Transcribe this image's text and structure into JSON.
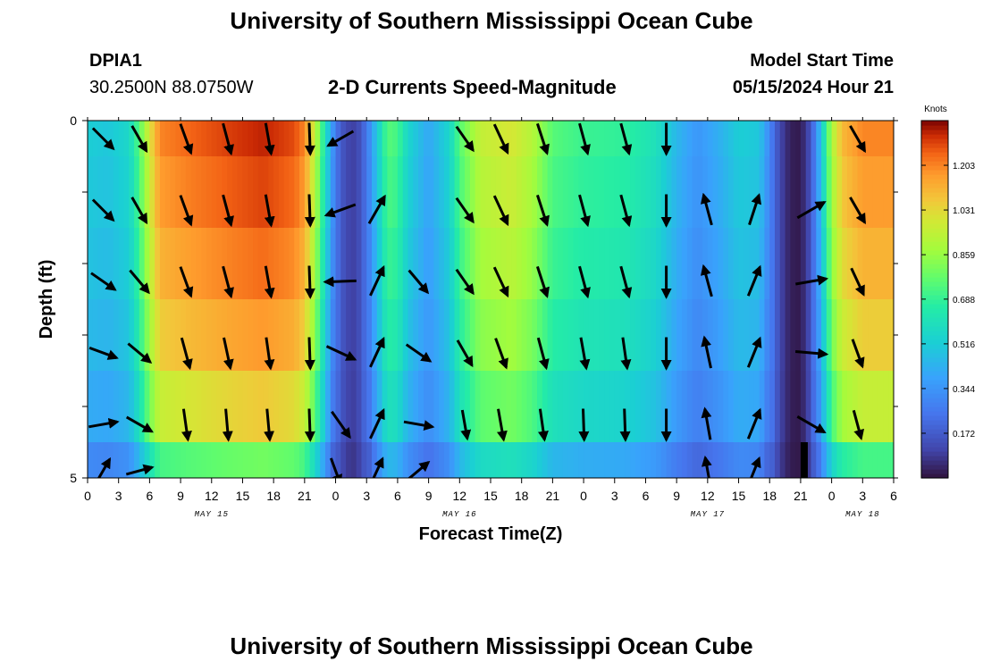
{
  "title": "University of Southern Mississippi Ocean Cube",
  "footer_title": "University of Southern Mississippi Ocean Cube",
  "station": {
    "id": "DPIA1",
    "location": "30.2500N  88.0750W"
  },
  "subtitle": "2-D Currents Speed-Magnitude",
  "model_start": {
    "label": "Model Start Time",
    "value": "05/15/2024 Hour 21"
  },
  "chart_data": {
    "type": "heatmap",
    "xlabel": "Forecast Time(Z)",
    "ylabel": "Depth (ft)",
    "x_tick_labels": [
      "0",
      "3",
      "6",
      "9",
      "12",
      "15",
      "18",
      "21",
      "0",
      "3",
      "6",
      "9",
      "12",
      "15",
      "18",
      "21",
      "0",
      "3",
      "6",
      "9",
      "12",
      "15",
      "18",
      "21",
      "0",
      "3",
      "6"
    ],
    "date_labels": [
      "MAY 15",
      "MAY 16",
      "MAY 17",
      "MAY 18"
    ],
    "y_tick_labels": [
      "0",
      "5"
    ],
    "ylim": [
      0,
      5
    ],
    "xlim_hours": [
      0,
      78
    ],
    "colorbar": {
      "unit": "Knots",
      "ticks": [
        "1.203",
        "1.031",
        "0.859",
        "0.688",
        "0.516",
        "0.344",
        "0.172"
      ],
      "range": [
        0,
        1.375
      ]
    },
    "depth_rows_ft": [
      0.25,
      1.25,
      2.25,
      3.25,
      4.25,
      4.75
    ],
    "speed_profile": [
      {
        "hour": 0,
        "speed": 0.52
      },
      {
        "hour": 2,
        "speed": 0.5
      },
      {
        "hour": 4,
        "speed": 0.56
      },
      {
        "hour": 5,
        "speed": 0.75
      },
      {
        "hour": 6,
        "speed": 1.0
      },
      {
        "hour": 7,
        "speed": 1.2
      },
      {
        "hour": 10,
        "speed": 1.25
      },
      {
        "hour": 14,
        "speed": 1.3
      },
      {
        "hour": 17,
        "speed": 1.33
      },
      {
        "hour": 20,
        "speed": 1.28
      },
      {
        "hour": 21,
        "speed": 1.2
      },
      {
        "hour": 22,
        "speed": 0.95
      },
      {
        "hour": 23,
        "speed": 0.6
      },
      {
        "hour": 24,
        "speed": 0.25
      },
      {
        "hour": 25,
        "speed": 0.12
      },
      {
        "hour": 26,
        "speed": 0.1
      },
      {
        "hour": 27,
        "speed": 0.25
      },
      {
        "hour": 28,
        "speed": 0.5
      },
      {
        "hour": 29,
        "speed": 0.75
      },
      {
        "hour": 30,
        "speed": 0.72
      },
      {
        "hour": 31,
        "speed": 0.55
      },
      {
        "hour": 33,
        "speed": 0.4
      },
      {
        "hour": 35,
        "speed": 0.55
      },
      {
        "hour": 36,
        "speed": 0.75
      },
      {
        "hour": 38,
        "speed": 0.95
      },
      {
        "hour": 41,
        "speed": 1.0
      },
      {
        "hour": 43,
        "speed": 0.92
      },
      {
        "hour": 45,
        "speed": 0.75
      },
      {
        "hour": 48,
        "speed": 0.7
      },
      {
        "hour": 52,
        "speed": 0.68
      },
      {
        "hour": 55,
        "speed": 0.6
      },
      {
        "hour": 57,
        "speed": 0.45
      },
      {
        "hour": 59,
        "speed": 0.35
      },
      {
        "hour": 61,
        "speed": 0.42
      },
      {
        "hour": 63,
        "speed": 0.52
      },
      {
        "hour": 65,
        "speed": 0.5
      },
      {
        "hour": 66,
        "speed": 0.3
      },
      {
        "hour": 67,
        "speed": 0.12
      },
      {
        "hour": 68,
        "speed": 0.03
      },
      {
        "hour": 69,
        "speed": 0.02
      },
      {
        "hour": 70,
        "speed": 0.15
      },
      {
        "hour": 71,
        "speed": 0.5
      },
      {
        "hour": 72,
        "speed": 0.9
      },
      {
        "hour": 73,
        "speed": 1.1
      },
      {
        "hour": 75,
        "speed": 1.2
      },
      {
        "hour": 78,
        "speed": 1.2
      }
    ],
    "depth_factor": [
      1.0,
      0.97,
      0.93,
      0.88,
      0.8,
      0.6
    ],
    "vectors": [
      {
        "hour": 1.5,
        "depth": 0.25,
        "angle": 135,
        "speed": 0.5
      },
      {
        "hour": 5,
        "depth": 0.25,
        "angle": 150,
        "speed": 0.5
      },
      {
        "hour": 9.5,
        "depth": 0.25,
        "angle": 160,
        "speed": 0.6
      },
      {
        "hour": 13.5,
        "depth": 0.25,
        "angle": 165,
        "speed": 0.6
      },
      {
        "hour": 17.5,
        "depth": 0.25,
        "angle": 170,
        "speed": 0.6
      },
      {
        "hour": 21.5,
        "depth": 0.25,
        "angle": 178,
        "speed": 0.6
      },
      {
        "hour": 24.5,
        "depth": 0.25,
        "angle": 240,
        "speed": 0.5
      },
      {
        "hour": 36.5,
        "depth": 0.25,
        "angle": 145,
        "speed": 0.5
      },
      {
        "hour": 40,
        "depth": 0.25,
        "angle": 155,
        "speed": 0.6
      },
      {
        "hour": 44,
        "depth": 0.25,
        "angle": 162,
        "speed": 0.6
      },
      {
        "hour": 48,
        "depth": 0.25,
        "angle": 165,
        "speed": 0.6
      },
      {
        "hour": 52,
        "depth": 0.25,
        "angle": 165,
        "speed": 0.6
      },
      {
        "hour": 56,
        "depth": 0.25,
        "angle": 180,
        "speed": 0.6
      },
      {
        "hour": 74.5,
        "depth": 0.25,
        "angle": 150,
        "speed": 0.5
      },
      {
        "hour": 1.5,
        "depth": 1.25,
        "angle": 135,
        "speed": 0.5
      },
      {
        "hour": 5,
        "depth": 1.25,
        "angle": 150,
        "speed": 0.5
      },
      {
        "hour": 9.5,
        "depth": 1.25,
        "angle": 160,
        "speed": 0.6
      },
      {
        "hour": 13.5,
        "depth": 1.25,
        "angle": 165,
        "speed": 0.6
      },
      {
        "hour": 17.5,
        "depth": 1.25,
        "angle": 170,
        "speed": 0.6
      },
      {
        "hour": 21.5,
        "depth": 1.25,
        "angle": 178,
        "speed": 0.6
      },
      {
        "hour": 24.5,
        "depth": 1.25,
        "angle": 250,
        "speed": 0.6
      },
      {
        "hour": 28,
        "depth": 1.25,
        "angle": 30,
        "speed": 0.6
      },
      {
        "hour": 36.5,
        "depth": 1.25,
        "angle": 145,
        "speed": 0.5
      },
      {
        "hour": 40,
        "depth": 1.25,
        "angle": 155,
        "speed": 0.6
      },
      {
        "hour": 44,
        "depth": 1.25,
        "angle": 162,
        "speed": 0.6
      },
      {
        "hour": 48,
        "depth": 1.25,
        "angle": 165,
        "speed": 0.6
      },
      {
        "hour": 52,
        "depth": 1.25,
        "angle": 165,
        "speed": 0.6
      },
      {
        "hour": 56,
        "depth": 1.25,
        "angle": 180,
        "speed": 0.6
      },
      {
        "hour": 60,
        "depth": 1.25,
        "angle": 345,
        "speed": 0.6
      },
      {
        "hour": 64.5,
        "depth": 1.25,
        "angle": 18,
        "speed": 0.6
      },
      {
        "hour": 70,
        "depth": 1.25,
        "angle": 60,
        "speed": 0.6
      },
      {
        "hour": 74.5,
        "depth": 1.25,
        "angle": 150,
        "speed": 0.5
      },
      {
        "hour": 1.5,
        "depth": 2.25,
        "angle": 125,
        "speed": 0.5
      },
      {
        "hour": 5,
        "depth": 2.25,
        "angle": 140,
        "speed": 0.5
      },
      {
        "hour": 9.5,
        "depth": 2.25,
        "angle": 160,
        "speed": 0.6
      },
      {
        "hour": 13.5,
        "depth": 2.25,
        "angle": 165,
        "speed": 0.6
      },
      {
        "hour": 17.5,
        "depth": 2.25,
        "angle": 170,
        "speed": 0.6
      },
      {
        "hour": 21.5,
        "depth": 2.25,
        "angle": 178,
        "speed": 0.6
      },
      {
        "hour": 24.5,
        "depth": 2.25,
        "angle": 268,
        "speed": 0.6
      },
      {
        "hour": 28,
        "depth": 2.25,
        "angle": 25,
        "speed": 0.6
      },
      {
        "hour": 32,
        "depth": 2.25,
        "angle": 140,
        "speed": 0.5
      },
      {
        "hour": 36.5,
        "depth": 2.25,
        "angle": 145,
        "speed": 0.5
      },
      {
        "hour": 40,
        "depth": 2.25,
        "angle": 155,
        "speed": 0.6
      },
      {
        "hour": 44,
        "depth": 2.25,
        "angle": 162,
        "speed": 0.6
      },
      {
        "hour": 48,
        "depth": 2.25,
        "angle": 165,
        "speed": 0.6
      },
      {
        "hour": 52,
        "depth": 2.25,
        "angle": 165,
        "speed": 0.6
      },
      {
        "hour": 56,
        "depth": 2.25,
        "angle": 180,
        "speed": 0.6
      },
      {
        "hour": 60,
        "depth": 2.25,
        "angle": 345,
        "speed": 0.6
      },
      {
        "hour": 64.5,
        "depth": 2.25,
        "angle": 22,
        "speed": 0.6
      },
      {
        "hour": 70,
        "depth": 2.25,
        "angle": 80,
        "speed": 0.6
      },
      {
        "hour": 74.5,
        "depth": 2.25,
        "angle": 155,
        "speed": 0.5
      },
      {
        "hour": 1.5,
        "depth": 3.25,
        "angle": 110,
        "speed": 0.5
      },
      {
        "hour": 5,
        "depth": 3.25,
        "angle": 130,
        "speed": 0.5
      },
      {
        "hour": 9.5,
        "depth": 3.25,
        "angle": 165,
        "speed": 0.6
      },
      {
        "hour": 13.5,
        "depth": 3.25,
        "angle": 168,
        "speed": 0.6
      },
      {
        "hour": 17.5,
        "depth": 3.25,
        "angle": 172,
        "speed": 0.6
      },
      {
        "hour": 21.5,
        "depth": 3.25,
        "angle": 178,
        "speed": 0.6
      },
      {
        "hour": 24.5,
        "depth": 3.25,
        "angle": 115,
        "speed": 0.6
      },
      {
        "hour": 28,
        "depth": 3.25,
        "angle": 25,
        "speed": 0.6
      },
      {
        "hour": 32,
        "depth": 3.25,
        "angle": 125,
        "speed": 0.5
      },
      {
        "hour": 36.5,
        "depth": 3.25,
        "angle": 150,
        "speed": 0.5
      },
      {
        "hour": 40,
        "depth": 3.25,
        "angle": 160,
        "speed": 0.6
      },
      {
        "hour": 44,
        "depth": 3.25,
        "angle": 165,
        "speed": 0.6
      },
      {
        "hour": 48,
        "depth": 3.25,
        "angle": 170,
        "speed": 0.6
      },
      {
        "hour": 52,
        "depth": 3.25,
        "angle": 172,
        "speed": 0.6
      },
      {
        "hour": 56,
        "depth": 3.25,
        "angle": 180,
        "speed": 0.6
      },
      {
        "hour": 60,
        "depth": 3.25,
        "angle": 348,
        "speed": 0.6
      },
      {
        "hour": 64.5,
        "depth": 3.25,
        "angle": 22,
        "speed": 0.6
      },
      {
        "hour": 70,
        "depth": 3.25,
        "angle": 95,
        "speed": 0.6
      },
      {
        "hour": 74.5,
        "depth": 3.25,
        "angle": 160,
        "speed": 0.5
      },
      {
        "hour": 1.5,
        "depth": 4.25,
        "angle": 80,
        "speed": 0.5
      },
      {
        "hour": 5,
        "depth": 4.25,
        "angle": 120,
        "speed": 0.5
      },
      {
        "hour": 9.5,
        "depth": 4.25,
        "angle": 172,
        "speed": 0.6
      },
      {
        "hour": 13.5,
        "depth": 4.25,
        "angle": 175,
        "speed": 0.6
      },
      {
        "hour": 17.5,
        "depth": 4.25,
        "angle": 175,
        "speed": 0.6
      },
      {
        "hour": 21.5,
        "depth": 4.25,
        "angle": 178,
        "speed": 0.6
      },
      {
        "hour": 24.5,
        "depth": 4.25,
        "angle": 145,
        "speed": 0.6
      },
      {
        "hour": 28,
        "depth": 4.25,
        "angle": 25,
        "speed": 0.6
      },
      {
        "hour": 32,
        "depth": 4.25,
        "angle": 100,
        "speed": 0.5
      },
      {
        "hour": 36.5,
        "depth": 4.25,
        "angle": 170,
        "speed": 0.5
      },
      {
        "hour": 40,
        "depth": 4.25,
        "angle": 170,
        "speed": 0.6
      },
      {
        "hour": 44,
        "depth": 4.25,
        "angle": 172,
        "speed": 0.6
      },
      {
        "hour": 48,
        "depth": 4.25,
        "angle": 178,
        "speed": 0.6
      },
      {
        "hour": 52,
        "depth": 4.25,
        "angle": 178,
        "speed": 0.6
      },
      {
        "hour": 56,
        "depth": 4.25,
        "angle": 180,
        "speed": 0.6
      },
      {
        "hour": 60,
        "depth": 4.25,
        "angle": 350,
        "speed": 0.6
      },
      {
        "hour": 64.5,
        "depth": 4.25,
        "angle": 22,
        "speed": 0.6
      },
      {
        "hour": 70,
        "depth": 4.25,
        "angle": 120,
        "speed": 0.6
      },
      {
        "hour": 74.5,
        "depth": 4.25,
        "angle": 165,
        "speed": 0.5
      },
      {
        "hour": 1.5,
        "depth": 4.9,
        "angle": 30,
        "speed": 0.4
      },
      {
        "hour": 5,
        "depth": 4.9,
        "angle": 75,
        "speed": 0.4
      },
      {
        "hour": 24,
        "depth": 4.9,
        "angle": 160,
        "speed": 0.4
      },
      {
        "hour": 28,
        "depth": 4.9,
        "angle": 25,
        "speed": 0.4
      },
      {
        "hour": 32,
        "depth": 4.9,
        "angle": 50,
        "speed": 0.4
      },
      {
        "hour": 60,
        "depth": 4.9,
        "angle": 350,
        "speed": 0.4
      },
      {
        "hour": 64.5,
        "depth": 4.9,
        "angle": 22,
        "speed": 0.4
      }
    ]
  }
}
